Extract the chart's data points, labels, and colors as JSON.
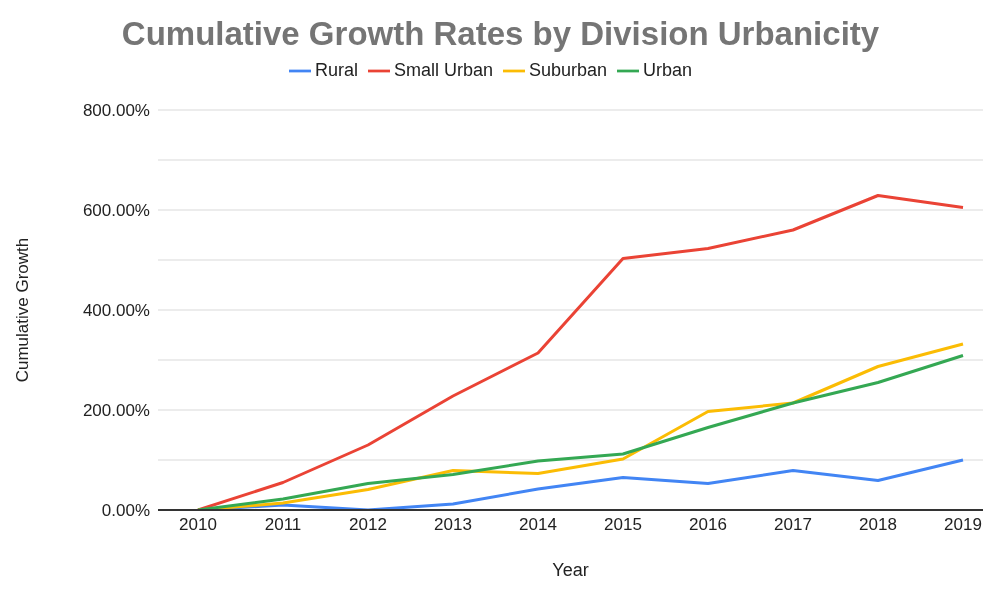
{
  "chart_data": {
    "type": "line",
    "title": "Cumulative Growth Rates by Division Urbanicity",
    "xlabel": "Year",
    "ylabel": "Cumulative Growth",
    "categories": [
      "2010",
      "2011",
      "2012",
      "2013",
      "2014",
      "2015",
      "2016",
      "2017",
      "2018",
      "2019"
    ],
    "series": [
      {
        "name": "Rural",
        "color": "#4285f4",
        "values": [
          0,
          10,
          0,
          12,
          42,
          65,
          53,
          79,
          59,
          100
        ]
      },
      {
        "name": "Small Urban",
        "color": "#ea4335",
        "values": [
          0,
          55,
          130,
          228,
          314,
          503,
          523,
          560,
          629,
          605
        ]
      },
      {
        "name": "Suburban",
        "color": "#fbbc04",
        "values": [
          0,
          14,
          41,
          79,
          73,
          102,
          197,
          214,
          287,
          332
        ]
      },
      {
        "name": "Urban",
        "color": "#34a853",
        "values": [
          0,
          22,
          53,
          71,
          98,
          112,
          165,
          214,
          255,
          309
        ]
      }
    ],
    "ylim": [
      0,
      800
    ],
    "yticks": [
      {
        "value": 0,
        "label": "0.00%"
      },
      {
        "value": 100,
        "label": null
      },
      {
        "value": 200,
        "label": "200.00%"
      },
      {
        "value": 300,
        "label": null
      },
      {
        "value": 400,
        "label": "400.00%"
      },
      {
        "value": 500,
        "label": null
      },
      {
        "value": 600,
        "label": "600.00%"
      },
      {
        "value": 700,
        "label": null
      },
      {
        "value": 800,
        "label": "800.00%"
      }
    ],
    "grid": "y",
    "legend": "top",
    "marker": "none",
    "line_style": "solid"
  }
}
